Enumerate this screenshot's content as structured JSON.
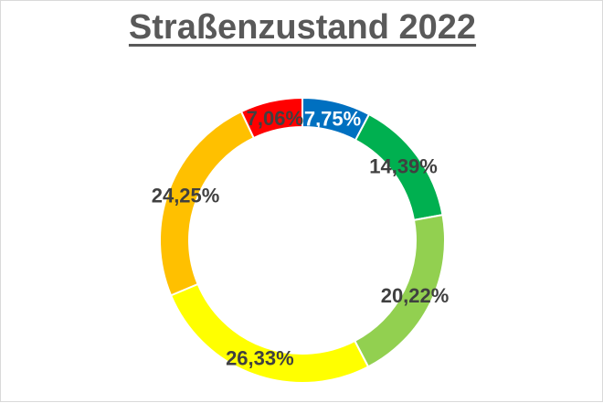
{
  "chart_data": {
    "type": "pie",
    "variant": "doughnut",
    "title": "Straßenzustand 2022",
    "slices": [
      {
        "value": 7.75,
        "label": "7,75%",
        "color": "#0070C0",
        "label_color": "#ffffff"
      },
      {
        "value": 14.39,
        "label": "14,39%",
        "color": "#00B050",
        "label_color": "#404040"
      },
      {
        "value": 20.22,
        "label": "20,22%",
        "color": "#92D050",
        "label_color": "#404040"
      },
      {
        "value": 26.33,
        "label": "26,33%",
        "color": "#FFFF00",
        "label_color": "#404040"
      },
      {
        "value": 24.25,
        "label": "24,25%",
        "color": "#FFC000",
        "label_color": "#404040"
      },
      {
        "value": 7.06,
        "label": "7,06%",
        "color": "#FF0000",
        "label_color": "#404040"
      }
    ]
  }
}
